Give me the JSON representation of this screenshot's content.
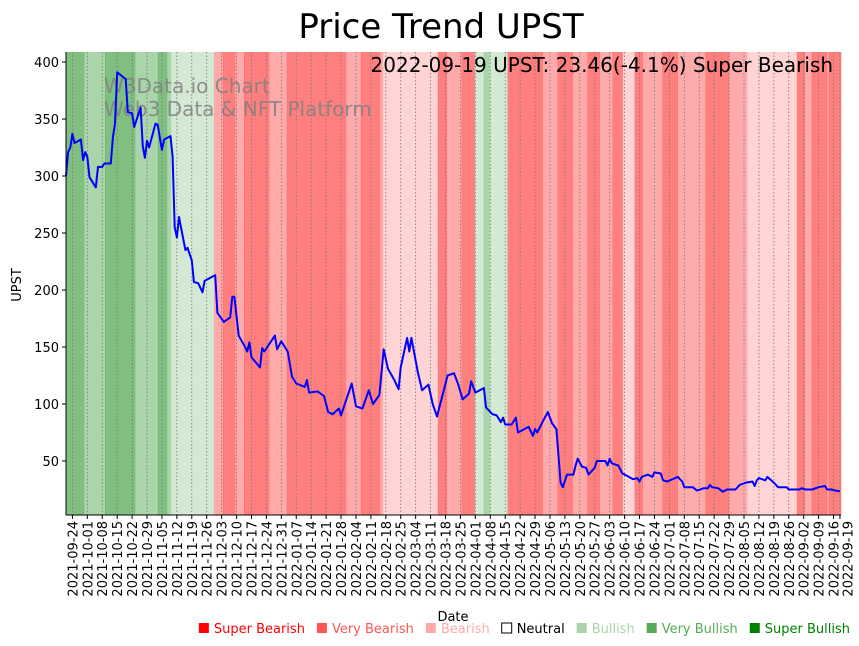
{
  "chart_data": {
    "type": "line",
    "title": "Price Trend UPST",
    "xlabel": "Date",
    "ylabel": "UPST",
    "ylim": [
      2.6,
      408.8
    ],
    "yticks": [
      50,
      100,
      150,
      200,
      250,
      300,
      350,
      400
    ],
    "x_origin": "2021-09-21",
    "x_range_days": [
      0,
      363.5
    ],
    "grid": "vertical dotted at x ticks",
    "annotation": "2022-09-19 UPST: 23.46(-4.1%) Super Bearish",
    "watermark": [
      "W3Data.io Chart",
      "Web3 Data & NFT Platform"
    ],
    "xtick_labels": [
      "2021-09-24",
      "2021-10-01",
      "2021-10-08",
      "2021-10-15",
      "2021-10-22",
      "2021-10-29",
      "2021-11-05",
      "2021-11-12",
      "2021-11-19",
      "2021-11-26",
      "2021-12-03",
      "2021-12-10",
      "2021-12-17",
      "2021-12-24",
      "2021-12-31",
      "2022-01-07",
      "2022-01-14",
      "2022-01-21",
      "2022-01-28",
      "2022-02-04",
      "2022-02-11",
      "2022-02-18",
      "2022-02-25",
      "2022-03-04",
      "2022-03-11",
      "2022-03-18",
      "2022-03-25",
      "2022-04-01",
      "2022-04-08",
      "2022-04-15",
      "2022-04-22",
      "2022-04-29",
      "2022-05-06",
      "2022-05-13",
      "2022-05-20",
      "2022-05-27",
      "2022-06-03",
      "2022-06-10",
      "2022-06-17",
      "2022-06-24",
      "2022-07-01",
      "2022-07-08",
      "2022-07-15",
      "2022-07-22",
      "2022-07-29",
      "2022-08-05",
      "2022-08-12",
      "2022-08-19",
      "2022-08-26",
      "2022-09-02",
      "2022-09-09",
      "2022-09-16",
      "2022-09-19"
    ],
    "series": [
      {
        "name": "UPST",
        "color": "#0000ff",
        "points_day_value": [
          [
            0,
            300
          ],
          [
            1,
            321
          ],
          [
            2,
            325
          ],
          [
            3,
            337
          ],
          [
            4,
            329
          ],
          [
            7,
            332
          ],
          [
            8,
            314
          ],
          [
            9,
            321
          ],
          [
            10,
            317
          ],
          [
            11,
            299
          ],
          [
            14,
            290
          ],
          [
            15,
            308
          ],
          [
            17,
            308
          ],
          [
            18,
            311
          ],
          [
            21,
            311
          ],
          [
            22,
            334
          ],
          [
            23,
            346
          ],
          [
            24,
            391
          ],
          [
            28,
            385
          ],
          [
            29,
            356
          ],
          [
            31,
            355
          ],
          [
            32,
            343
          ],
          [
            35,
            360
          ],
          [
            36,
            326
          ],
          [
            37,
            316
          ],
          [
            38,
            331
          ],
          [
            39,
            325
          ],
          [
            42,
            346
          ],
          [
            43,
            345
          ],
          [
            45,
            323
          ],
          [
            46,
            332
          ],
          [
            49,
            335
          ],
          [
            50,
            317
          ],
          [
            51,
            255
          ],
          [
            52,
            246
          ],
          [
            53,
            264
          ],
          [
            56,
            235
          ],
          [
            57,
            237
          ],
          [
            59,
            226
          ],
          [
            60,
            207
          ],
          [
            62,
            206
          ],
          [
            64,
            198
          ],
          [
            65,
            208
          ],
          [
            69,
            212
          ],
          [
            70,
            213
          ],
          [
            71,
            180
          ],
          [
            74,
            172
          ],
          [
            77,
            176
          ],
          [
            78,
            194
          ],
          [
            79,
            194
          ],
          [
            81,
            160
          ],
          [
            84,
            150
          ],
          [
            85,
            146
          ],
          [
            86,
            154
          ],
          [
            87,
            141
          ],
          [
            91,
            132
          ],
          [
            92,
            149
          ],
          [
            93,
            146
          ],
          [
            98,
            160
          ],
          [
            99,
            148
          ],
          [
            101,
            155
          ],
          [
            104,
            146
          ],
          [
            106,
            124
          ],
          [
            108,
            118
          ],
          [
            112,
            115
          ],
          [
            113,
            121
          ],
          [
            114,
            110
          ],
          [
            118,
            111
          ],
          [
            121,
            107
          ],
          [
            123,
            93
          ],
          [
            125,
            91
          ],
          [
            128,
            96
          ],
          [
            129,
            90
          ],
          [
            134,
            118
          ],
          [
            136,
            98
          ],
          [
            139,
            96
          ],
          [
            142,
            112
          ],
          [
            144,
            100
          ],
          [
            147,
            108
          ],
          [
            149,
            148
          ],
          [
            151,
            131
          ],
          [
            154,
            121
          ],
          [
            156,
            113
          ],
          [
            157,
            132
          ],
          [
            160,
            158
          ],
          [
            161,
            146
          ],
          [
            162,
            158
          ],
          [
            165,
            128
          ],
          [
            167,
            112
          ],
          [
            170,
            117
          ],
          [
            172,
            100
          ],
          [
            174,
            89
          ],
          [
            179,
            125
          ],
          [
            182,
            127
          ],
          [
            184,
            117
          ],
          [
            186,
            104
          ],
          [
            189,
            109
          ],
          [
            190,
            120
          ],
          [
            192,
            110
          ],
          [
            196,
            114
          ],
          [
            197,
            97
          ],
          [
            200,
            91
          ],
          [
            202,
            90
          ],
          [
            204,
            84
          ],
          [
            205,
            88
          ],
          [
            206,
            82
          ],
          [
            209,
            82
          ],
          [
            211,
            88
          ],
          [
            212,
            75
          ],
          [
            217,
            80
          ],
          [
            219,
            72
          ],
          [
            220,
            78
          ],
          [
            221,
            75
          ],
          [
            224,
            86
          ],
          [
            226,
            93
          ],
          [
            228,
            83
          ],
          [
            230,
            78
          ],
          [
            232,
            31
          ],
          [
            233,
            27
          ],
          [
            235,
            38
          ],
          [
            238,
            38
          ],
          [
            239,
            46
          ],
          [
            240,
            52
          ],
          [
            242,
            45
          ],
          [
            244,
            44
          ],
          [
            245,
            38
          ],
          [
            248,
            44
          ],
          [
            249,
            50
          ],
          [
            253,
            50
          ],
          [
            254,
            46
          ],
          [
            255,
            52
          ],
          [
            256,
            48
          ],
          [
            259,
            46
          ],
          [
            261,
            39
          ],
          [
            264,
            36
          ],
          [
            266,
            34
          ],
          [
            268,
            35
          ],
          [
            269,
            32
          ],
          [
            270,
            36
          ],
          [
            273,
            38
          ],
          [
            275,
            36
          ],
          [
            276,
            40
          ],
          [
            279,
            39
          ],
          [
            280,
            33
          ],
          [
            282,
            32
          ],
          [
            287,
            36
          ],
          [
            289,
            32
          ],
          [
            290,
            27
          ],
          [
            294,
            27
          ],
          [
            296,
            24
          ],
          [
            299,
            26
          ],
          [
            301,
            26
          ],
          [
            302,
            29
          ],
          [
            303,
            27
          ],
          [
            306,
            26
          ],
          [
            308,
            23
          ],
          [
            310,
            25
          ],
          [
            314,
            25
          ],
          [
            316,
            29
          ],
          [
            319,
            31
          ],
          [
            322,
            32
          ],
          [
            323,
            28
          ],
          [
            324,
            33
          ],
          [
            325,
            35
          ],
          [
            328,
            33
          ],
          [
            329,
            36
          ],
          [
            332,
            31
          ],
          [
            334,
            27
          ],
          [
            338,
            27
          ],
          [
            339,
            25
          ],
          [
            344,
            25
          ],
          [
            345,
            26
          ],
          [
            347,
            25
          ],
          [
            350,
            25
          ],
          [
            353,
            27
          ],
          [
            356,
            28
          ],
          [
            357,
            25
          ],
          [
            359,
            25
          ],
          [
            361,
            24
          ],
          [
            363,
            23.46
          ]
        ]
      }
    ],
    "sentiment_colors": {
      "Super Bearish": "#ff0000",
      "Very Bearish": "#ff5555",
      "Bearish": "#ffaaaa",
      "Neutral": "#ffffff",
      "Bullish": "#aad4aa",
      "Very Bullish": "#55aa55",
      "Super Bullish": "#008000"
    },
    "sentiment_bands_days": [
      [
        0,
        8.4,
        "Super Bullish"
      ],
      [
        8.4,
        18.3,
        "Very Bullish"
      ],
      [
        18.3,
        32.3,
        "Super Bullish"
      ],
      [
        32.3,
        43.1,
        "Very Bullish"
      ],
      [
        43.1,
        47.3,
        "Super Bullish"
      ],
      [
        47.3,
        49.2,
        "Very Bullish"
      ],
      [
        49.2,
        69.4,
        "Bullish"
      ],
      [
        69.4,
        73.6,
        "Very Bearish"
      ],
      [
        73.6,
        79.3,
        "Super Bearish"
      ],
      [
        79.3,
        83.5,
        "Very Bearish"
      ],
      [
        83.5,
        95.2,
        "Super Bearish"
      ],
      [
        95.2,
        103.6,
        "Very Bearish"
      ],
      [
        103.6,
        131.3,
        "Super Bearish"
      ],
      [
        131.3,
        138.3,
        "Very Bearish"
      ],
      [
        138.3,
        147.2,
        "Super Bearish"
      ],
      [
        147.2,
        148.6,
        "Very Bearish"
      ],
      [
        148.6,
        174.4,
        "Bearish"
      ],
      [
        174.4,
        178.6,
        "Super Bearish"
      ],
      [
        178.6,
        185.6,
        "Very Bearish"
      ],
      [
        185.6,
        191.7,
        "Super Bearish"
      ],
      [
        191.7,
        195.9,
        "Bullish"
      ],
      [
        195.9,
        198.7,
        "Very Bullish"
      ],
      [
        198.7,
        207.1,
        "Bullish"
      ],
      [
        207.1,
        223.5,
        "Super Bearish"
      ],
      [
        223.5,
        230.6,
        "Very Bearish"
      ],
      [
        230.6,
        237.6,
        "Super Bearish"
      ],
      [
        237.6,
        244.6,
        "Very Bearish"
      ],
      [
        244.6,
        250.3,
        "Super Bearish"
      ],
      [
        250.3,
        256.4,
        "Very Bearish"
      ],
      [
        256.4,
        261.1,
        "Super Bearish"
      ],
      [
        261.1,
        266.7,
        "Bearish"
      ],
      [
        266.7,
        270.5,
        "Super Bearish"
      ],
      [
        270.5,
        279.8,
        "Very Bearish"
      ],
      [
        279.8,
        286.9,
        "Super Bearish"
      ],
      [
        286.9,
        300,
        "Very Bearish"
      ],
      [
        300,
        310.9,
        "Super Bearish"
      ],
      [
        310.9,
        319.4,
        "Very Bearish"
      ],
      [
        319.4,
        342.8,
        "Bearish"
      ],
      [
        342.8,
        346.5,
        "Super Bearish"
      ],
      [
        346.5,
        349.8,
        "Very Bearish"
      ],
      [
        349.8,
        356.9,
        "Super Bearish"
      ],
      [
        356.9,
        357.8,
        "Very Bearish"
      ],
      [
        357.8,
        363.5,
        "Super Bearish"
      ]
    ],
    "legend": {
      "placement": "bottom",
      "items": [
        "Super Bearish",
        "Very Bearish",
        "Bearish",
        "Neutral",
        "Bullish",
        "Very Bullish",
        "Super Bullish"
      ]
    }
  }
}
